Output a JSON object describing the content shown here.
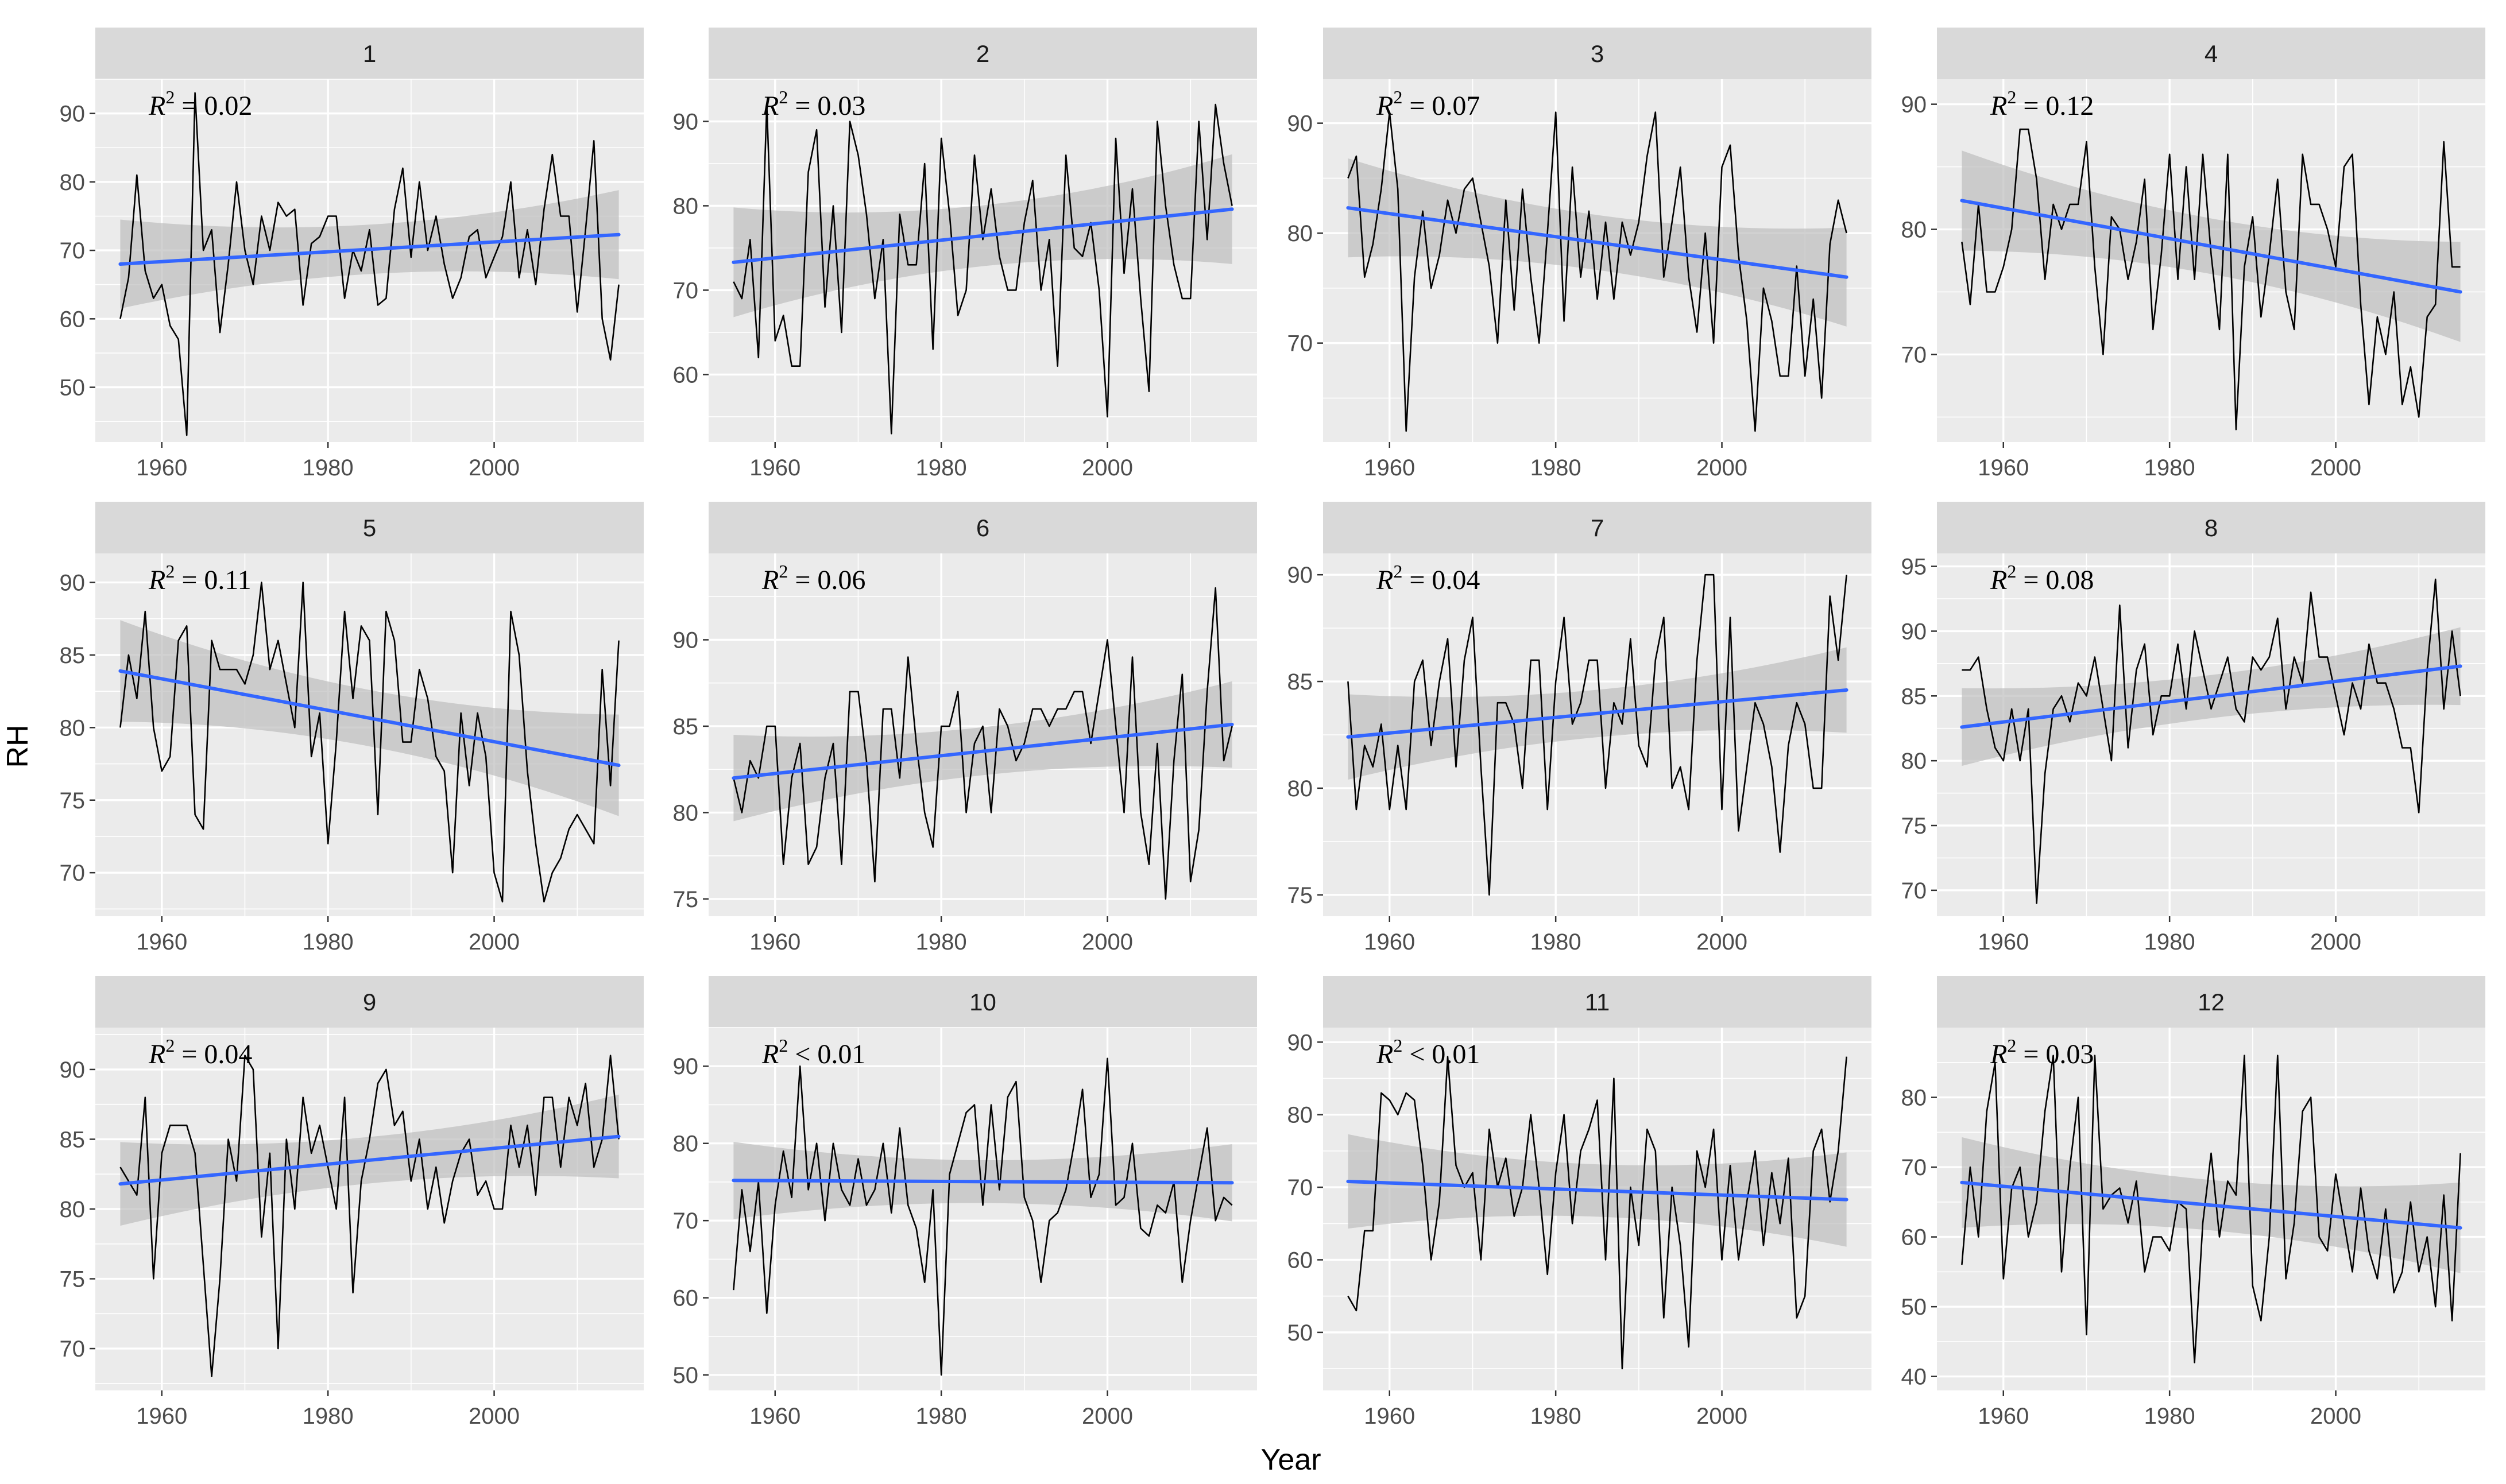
{
  "chart_data": {
    "type": "line",
    "layout": "facet-grid-3x4",
    "xlabel": "Year",
    "ylabel": "RH",
    "x_range": [
      1955,
      2015
    ],
    "x_ticks": [
      1960,
      1980,
      2000
    ],
    "colors": {
      "panel_bg": "#ebebeb",
      "grid_major": "#ffffff",
      "strip_bg": "#d9d9d9",
      "series_line": "#000000",
      "trend_line": "#3366ff",
      "ribbon": "#bebebe"
    },
    "panels": [
      {
        "strip": "1",
        "r2_text": "= 0.02",
        "ylim": [
          42,
          95
        ],
        "y_ticks": [
          50,
          60,
          70,
          80,
          90
        ],
        "trend": [
          68,
          72.3
        ],
        "ci_halfwidth": [
          6.5,
          6.5
        ],
        "values": [
          60,
          66,
          81,
          67,
          63,
          65,
          59,
          57,
          43,
          93,
          70,
          73,
          58,
          68,
          80,
          70,
          65,
          75,
          70,
          77,
          75,
          76,
          62,
          71,
          72,
          75,
          75,
          63,
          70,
          67,
          73,
          62,
          63,
          76,
          82,
          69,
          80,
          70,
          75,
          68,
          63,
          66,
          72,
          73,
          66,
          69,
          72,
          80,
          66,
          73,
          65,
          76,
          84,
          75,
          75,
          61,
          73,
          86,
          60,
          54,
          65
        ]
      },
      {
        "strip": "2",
        "r2_text": "= 0.03",
        "ylim": [
          52,
          95
        ],
        "y_ticks": [
          60,
          70,
          80,
          90
        ],
        "trend": [
          73.3,
          79.6
        ],
        "ci_halfwidth": [
          6.5,
          6.5
        ],
        "values": [
          71,
          69,
          76,
          62,
          92,
          64,
          67,
          61,
          61,
          84,
          89,
          68,
          80,
          65,
          90,
          86,
          79,
          69,
          76,
          53,
          79,
          73,
          73,
          85,
          63,
          88,
          79,
          67,
          70,
          86,
          76,
          82,
          74,
          70,
          70,
          78,
          83,
          70,
          76,
          61,
          86,
          75,
          74,
          78,
          70,
          55,
          88,
          72,
          82,
          69,
          58,
          90,
          80,
          73,
          69,
          69,
          90,
          76,
          92,
          85,
          80
        ]
      },
      {
        "strip": "3",
        "r2_text": "= 0.07",
        "ylim": [
          61,
          94
        ],
        "y_ticks": [
          70,
          80,
          90
        ],
        "trend": [
          82.3,
          76
        ],
        "ci_halfwidth": [
          4.5,
          4.5
        ],
        "values": [
          85,
          87,
          76,
          79,
          84,
          91,
          84,
          62,
          76,
          82,
          75,
          78,
          83,
          80,
          84,
          85,
          81,
          77,
          70,
          83,
          73,
          84,
          76,
          70,
          80,
          91,
          72,
          86,
          76,
          82,
          74,
          81,
          74,
          81,
          78,
          81,
          87,
          91,
          76,
          81,
          86,
          76,
          71,
          80,
          70,
          86,
          88,
          78,
          72,
          62,
          75,
          72,
          67,
          67,
          77,
          67,
          74,
          65,
          79,
          83,
          80
        ]
      },
      {
        "strip": "4",
        "r2_text": "= 0.12",
        "ylim": [
          63,
          92
        ],
        "y_ticks": [
          70,
          80,
          90
        ],
        "trend": [
          82.3,
          75
        ],
        "ci_halfwidth": [
          4,
          4
        ],
        "values": [
          79,
          74,
          82,
          75,
          75,
          77,
          80,
          88,
          88,
          84,
          76,
          82,
          80,
          82,
          82,
          87,
          77,
          70,
          81,
          80,
          76,
          79,
          84,
          72,
          78,
          86,
          76,
          85,
          76,
          86,
          78,
          72,
          86,
          64,
          77,
          81,
          73,
          78,
          84,
          75,
          72,
          86,
          82,
          82,
          80,
          77,
          85,
          86,
          74,
          66,
          73,
          70,
          75,
          66,
          69,
          65,
          73,
          74,
          87,
          77,
          77
        ]
      },
      {
        "strip": "5",
        "r2_text": "= 0.11",
        "ylim": [
          67,
          92
        ],
        "y_ticks": [
          70,
          75,
          80,
          85,
          90
        ],
        "trend": [
          83.9,
          77.4
        ],
        "ci_halfwidth": [
          3.5,
          3.5
        ],
        "values": [
          80,
          85,
          82,
          88,
          80,
          77,
          78,
          86,
          87,
          74,
          73,
          86,
          84,
          84,
          84,
          83,
          85,
          90,
          84,
          86,
          83,
          80,
          90,
          78,
          81,
          72,
          79,
          88,
          82,
          87,
          86,
          74,
          88,
          86,
          79,
          79,
          84,
          82,
          78,
          77,
          70,
          81,
          76,
          81,
          78,
          70,
          68,
          88,
          85,
          77,
          72,
          68,
          70,
          71,
          73,
          74,
          73,
          72,
          84,
          76,
          86
        ]
      },
      {
        "strip": "6",
        "r2_text": "= 0.06",
        "ylim": [
          74,
          95
        ],
        "y_ticks": [
          75,
          80,
          85,
          90
        ],
        "trend": [
          82,
          85.1
        ],
        "ci_halfwidth": [
          2.5,
          2.5
        ],
        "values": [
          82,
          80,
          83,
          82,
          85,
          85,
          77,
          82,
          84,
          77,
          78,
          82,
          84,
          77,
          87,
          87,
          83,
          76,
          86,
          86,
          82,
          89,
          84,
          80,
          78,
          85,
          85,
          87,
          80,
          84,
          85,
          80,
          86,
          85,
          83,
          84,
          86,
          86,
          85,
          86,
          86,
          87,
          87,
          84,
          87,
          90,
          85,
          80,
          89,
          80,
          77,
          84,
          75,
          83,
          88,
          76,
          79,
          87,
          93,
          83,
          85
        ]
      },
      {
        "strip": "7",
        "r2_text": "= 0.04",
        "ylim": [
          74,
          91
        ],
        "y_ticks": [
          75,
          80,
          85,
          90
        ],
        "trend": [
          82.4,
          84.6
        ],
        "ci_halfwidth": [
          2,
          2
        ],
        "values": [
          85,
          79,
          82,
          81,
          83,
          79,
          82,
          79,
          85,
          86,
          82,
          85,
          87,
          81,
          86,
          88,
          81,
          75,
          84,
          84,
          83,
          80,
          86,
          86,
          79,
          85,
          88,
          83,
          84,
          86,
          86,
          80,
          84,
          83,
          87,
          82,
          81,
          86,
          88,
          80,
          81,
          79,
          86,
          90,
          90,
          79,
          88,
          78,
          81,
          84,
          83,
          81,
          77,
          82,
          84,
          83,
          80,
          80,
          89,
          86,
          90
        ]
      },
      {
        "strip": "8",
        "r2_text": "= 0.08",
        "ylim": [
          68,
          96
        ],
        "y_ticks": [
          70,
          75,
          80,
          85,
          90,
          95
        ],
        "trend": [
          82.6,
          87.3
        ],
        "ci_halfwidth": [
          3,
          3
        ],
        "values": [
          87,
          87,
          88,
          84,
          81,
          80,
          84,
          80,
          84,
          69,
          79,
          84,
          85,
          83,
          86,
          85,
          88,
          84,
          80,
          92,
          81,
          87,
          89,
          82,
          85,
          85,
          89,
          84,
          90,
          87,
          84,
          86,
          88,
          84,
          83,
          88,
          87,
          88,
          91,
          84,
          88,
          86,
          93,
          88,
          88,
          85,
          82,
          86,
          84,
          89,
          86,
          86,
          84,
          81,
          81,
          76,
          87,
          94,
          84,
          90,
          85
        ]
      },
      {
        "strip": "9",
        "r2_text": "= 0.04",
        "ylim": [
          67,
          93
        ],
        "y_ticks": [
          70,
          75,
          80,
          85,
          90
        ],
        "trend": [
          81.8,
          85.2
        ],
        "ci_halfwidth": [
          3,
          3
        ],
        "values": [
          83,
          82,
          81,
          88,
          75,
          84,
          86,
          86,
          86,
          84,
          76,
          68,
          75,
          85,
          82,
          91,
          90,
          78,
          84,
          70,
          85,
          80,
          88,
          84,
          86,
          83,
          80,
          88,
          74,
          82,
          85,
          89,
          90,
          86,
          87,
          82,
          85,
          80,
          83,
          79,
          82,
          84,
          85,
          81,
          82,
          80,
          80,
          86,
          83,
          86,
          81,
          88,
          88,
          83,
          88,
          86,
          89,
          83,
          85,
          91,
          85
        ]
      },
      {
        "strip": "10",
        "r2_text": "< 0.01",
        "ylim": [
          48,
          95
        ],
        "y_ticks": [
          50,
          60,
          70,
          80,
          90
        ],
        "trend": [
          75.2,
          74.9
        ],
        "ci_halfwidth": [
          5,
          5
        ],
        "values": [
          61,
          74,
          66,
          75,
          58,
          72,
          79,
          73,
          90,
          74,
          80,
          70,
          80,
          74,
          72,
          78,
          72,
          74,
          80,
          71,
          82,
          72,
          69,
          62,
          74,
          50,
          76,
          80,
          84,
          85,
          72,
          85,
          74,
          86,
          88,
          73,
          70,
          62,
          70,
          71,
          74,
          80,
          87,
          73,
          76,
          91,
          72,
          73,
          80,
          69,
          68,
          72,
          71,
          75,
          62,
          70,
          76,
          82,
          70,
          73,
          72
        ]
      },
      {
        "strip": "11",
        "r2_text": "< 0.01",
        "ylim": [
          42,
          92
        ],
        "y_ticks": [
          50,
          60,
          70,
          80,
          90
        ],
        "trend": [
          70.8,
          68.3
        ],
        "ci_halfwidth": [
          6.5,
          6.5
        ],
        "values": [
          55,
          53,
          64,
          64,
          83,
          82,
          80,
          83,
          82,
          73,
          60,
          68,
          88,
          73,
          70,
          72,
          60,
          78,
          70,
          74,
          66,
          70,
          80,
          70,
          58,
          72,
          80,
          65,
          75,
          78,
          82,
          60,
          85,
          45,
          70,
          62,
          78,
          75,
          52,
          70,
          62,
          48,
          75,
          70,
          78,
          60,
          73,
          60,
          68,
          75,
          62,
          72,
          65,
          74,
          52,
          55,
          75,
          78,
          68,
          75,
          88
        ]
      },
      {
        "strip": "12",
        "r2_text": "= 0.03",
        "ylim": [
          38,
          90
        ],
        "y_ticks": [
          40,
          50,
          60,
          70,
          80
        ],
        "trend": [
          67.8,
          61.3
        ],
        "ci_halfwidth": [
          6.5,
          6.5
        ],
        "values": [
          56,
          70,
          60,
          78,
          85,
          54,
          67,
          70,
          60,
          65,
          78,
          86,
          55,
          70,
          80,
          46,
          86,
          64,
          66,
          67,
          62,
          68,
          55,
          60,
          60,
          58,
          65,
          64,
          42,
          62,
          72,
          60,
          68,
          66,
          86,
          53,
          48,
          60,
          86,
          54,
          62,
          78,
          80,
          60,
          58,
          69,
          62,
          55,
          67,
          58,
          54,
          64,
          52,
          55,
          65,
          55,
          60,
          50,
          66,
          48,
          72
        ]
      }
    ]
  }
}
